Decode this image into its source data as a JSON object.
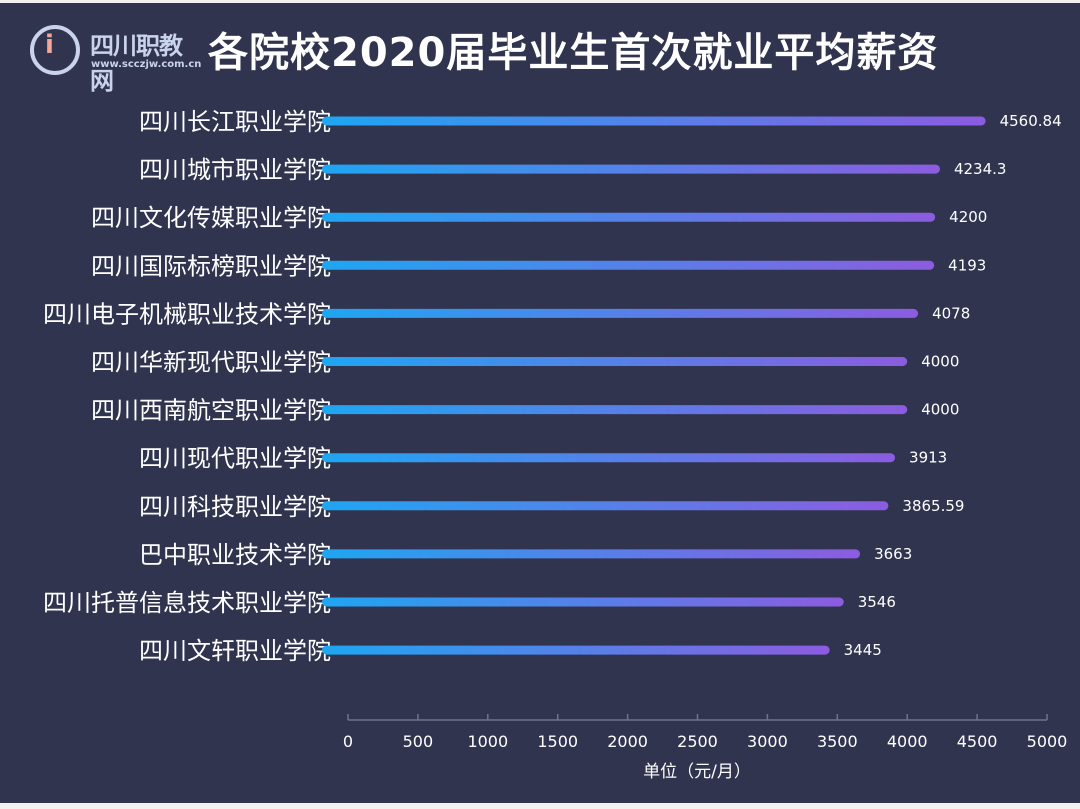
{
  "logo": {
    "name": "四川职教网",
    "url": "www.scczjw.com.cn"
  },
  "chart_data": {
    "type": "bar",
    "orientation": "horizontal",
    "title": "各院校2020届毕业生首次就业平均薪资",
    "xlabel": "单位（元/月）",
    "ylabel": "",
    "xlim": [
      0,
      5000
    ],
    "xticks": [
      0,
      500,
      1000,
      1500,
      2000,
      2500,
      3000,
      3500,
      4000,
      4500,
      5000
    ],
    "grid": false,
    "categories": [
      "四川长江职业学院",
      "四川城市职业学院",
      "四川文化传媒职业学院",
      "四川国际标榜职业学院",
      "四川电子机械职业技术学院",
      "四川华新现代职业学院",
      "四川西南航空职业学院",
      "四川现代职业学院",
      "四川科技职业学院",
      "巴中职业技术学院",
      "四川托普信息技术职业学院",
      "四川文轩职业学院"
    ],
    "values": [
      4560.84,
      4234.3,
      4200,
      4193,
      4078,
      4000,
      4000,
      3913,
      3865.59,
      3663,
      3546,
      3445
    ],
    "value_labels": [
      "4560.84",
      "4234.3",
      "4200",
      "4193",
      "4078",
      "4000",
      "4000",
      "3913",
      "3865.59",
      "3663",
      "3546",
      "3445"
    ],
    "colors": {
      "background": "#30344f",
      "bar_start": "#1ea6f2",
      "bar_end": "#8c5ce0",
      "text": "#ffffff",
      "axis": "#6e7390"
    }
  }
}
